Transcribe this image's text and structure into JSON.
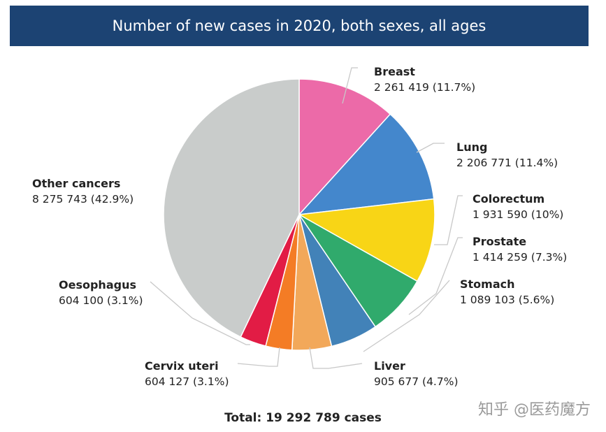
{
  "chart_data": {
    "type": "pie",
    "title": "Number of new cases in 2020, both sexes, all ages",
    "total_label": "Total: 19 292 789 cases",
    "slices": [
      {
        "name": "Breast",
        "value": 2261419,
        "value_label": "2 261 419 (11.7%)",
        "color": "#ec6aa8"
      },
      {
        "name": "Lung",
        "value": 2206771,
        "value_label": "2 206 771 (11.4%)",
        "color": "#4487cc"
      },
      {
        "name": "Colorectum",
        "value": 1931590,
        "value_label": "1 931 590 (10%)",
        "color": "#f8d516"
      },
      {
        "name": "Prostate",
        "value": 1414259,
        "value_label": "1 414 259 (7.3%)",
        "color": "#30aa6c"
      },
      {
        "name": "Stomach",
        "value": 1089103,
        "value_label": "1 089 103 (5.6%)",
        "color": "#4282b8"
      },
      {
        "name": "Liver",
        "value": 905677,
        "value_label": "905 677 (4.7%)",
        "color": "#f2a85a"
      },
      {
        "name": "Cervix uteri",
        "value": 604127,
        "value_label": "604 127 (3.1%)",
        "color": "#f47c25"
      },
      {
        "name": "Oesophagus",
        "value": 604100,
        "value_label": "604 100 (3.1%)",
        "color": "#e21c45"
      },
      {
        "name": "Other cancers",
        "value": 8275743,
        "value_label": "8 275 743 (42.9%)",
        "color": "#c9cccb"
      }
    ]
  },
  "watermark": "知乎 @医药魔方"
}
